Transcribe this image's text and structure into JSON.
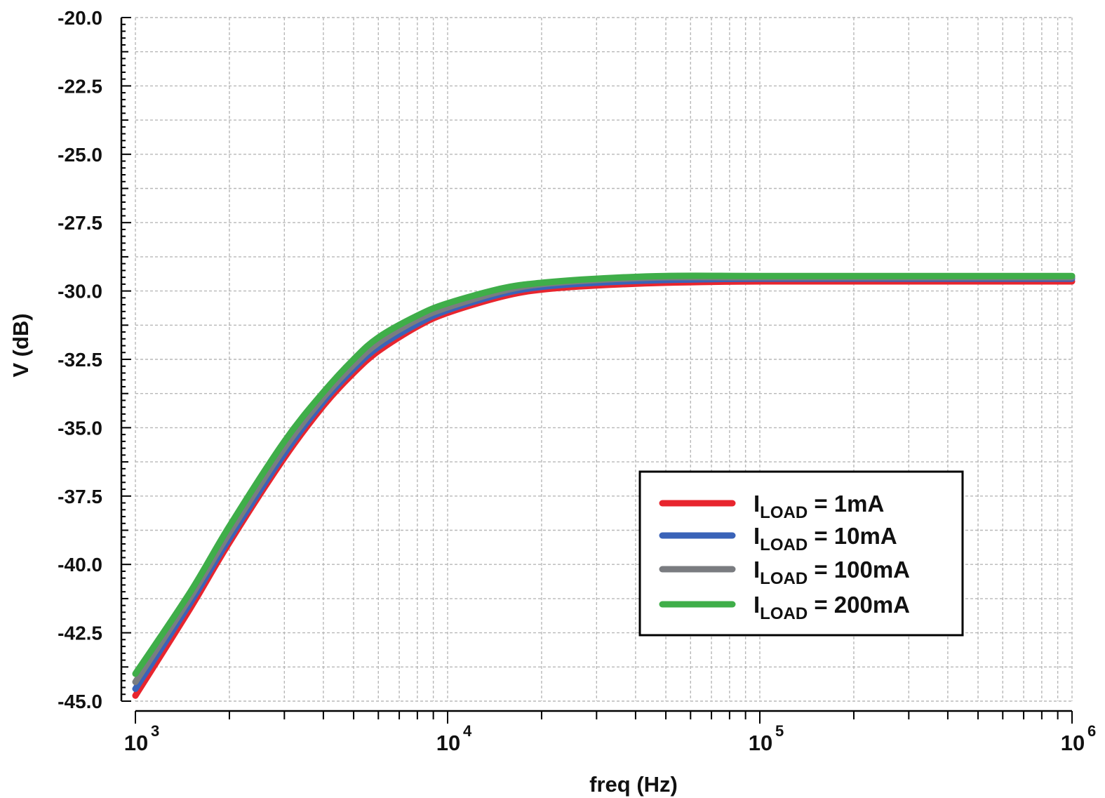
{
  "chart_data": {
    "type": "line",
    "title": "",
    "xlabel": "freq (Hz)",
    "ylabel": "V (dB)",
    "x_scale": "log",
    "xlim": [
      1000,
      1000000
    ],
    "ylim": [
      -45.0,
      -20.0
    ],
    "grid": true,
    "legend_position": "bottom-right",
    "x_ticks": [
      {
        "base": "10",
        "exp": "3",
        "value": 1000
      },
      {
        "base": "10",
        "exp": "4",
        "value": 10000
      },
      {
        "base": "10",
        "exp": "5",
        "value": 100000
      },
      {
        "base": "10",
        "exp": "6",
        "value": 1000000
      }
    ],
    "y_ticks": [
      "-20.0",
      "-22.5",
      "-25.0",
      "-27.5",
      "-30.0",
      "-32.5",
      "-35.0",
      "-37.5",
      "-40.0",
      "-42.5",
      "-45.0"
    ],
    "x": [
      1000,
      1500,
      2000,
      3000,
      4000,
      5000,
      6000,
      8000,
      10000,
      15000,
      20000,
      30000,
      50000,
      100000,
      300000,
      1000000
    ],
    "series": [
      {
        "name": "I_LOAD = 1mA",
        "label_main": "I",
        "label_sub": "LOAD",
        "label_rest": " = 1mA",
        "color": "#e8252e",
        "values": [
          -44.8,
          -41.6,
          -39.2,
          -36.1,
          -34.2,
          -33.0,
          -32.2,
          -31.3,
          -30.8,
          -30.2,
          -29.95,
          -29.8,
          -29.7,
          -29.65,
          -29.65,
          -29.65
        ]
      },
      {
        "name": "I_LOAD = 10mA",
        "label_main": "I",
        "label_sub": "LOAD",
        "label_rest": " = 10mA",
        "color": "#3a63b8",
        "values": [
          -44.55,
          -41.4,
          -39.05,
          -35.95,
          -34.05,
          -32.85,
          -32.05,
          -31.2,
          -30.7,
          -30.1,
          -29.85,
          -29.7,
          -29.6,
          -29.55,
          -29.55,
          -29.55
        ]
      },
      {
        "name": "I_LOAD = 100mA",
        "label_main": "I",
        "label_sub": "LOAD",
        "label_rest": " = 100mA",
        "color": "#7a7c80",
        "values": [
          -44.3,
          -41.2,
          -38.85,
          -35.75,
          -33.9,
          -32.7,
          -31.9,
          -31.05,
          -30.6,
          -30.0,
          -29.75,
          -29.6,
          -29.5,
          -29.5,
          -29.5,
          -29.5
        ]
      },
      {
        "name": "I_LOAD = 200mA",
        "label_main": "I",
        "label_sub": "LOAD",
        "label_rest": " = 200mA",
        "color": "#3fae49",
        "values": [
          -44.0,
          -41.0,
          -38.6,
          -35.5,
          -33.7,
          -32.5,
          -31.7,
          -30.9,
          -30.45,
          -29.9,
          -29.7,
          -29.55,
          -29.45,
          -29.45,
          -29.45,
          -29.45
        ]
      }
    ]
  }
}
